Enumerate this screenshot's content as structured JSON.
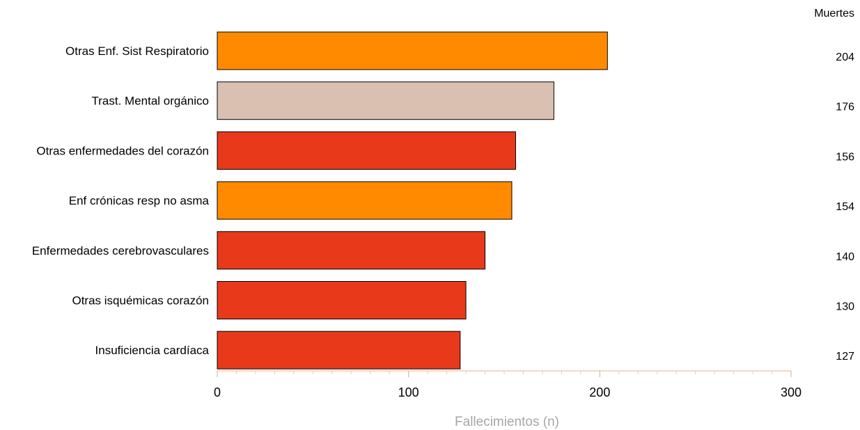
{
  "chart_data": {
    "type": "bar",
    "orientation": "horizontal",
    "categories": [
      "Otras Enf. Sist Respiratorio",
      "Trast. Mental orgánico",
      "Otras enfermedades del corazón",
      "Enf crónicas resp no asma",
      "Enfermedades cerebrovasculares",
      "Otras isquémicas corazón",
      "Insuficiencia cardíaca"
    ],
    "values": [
      204,
      176,
      156,
      154,
      140,
      130,
      127
    ],
    "value_labels": [
      "204",
      "176",
      "156",
      "154",
      "140",
      "130",
      "127"
    ],
    "bar_colors": [
      "#ff8a00",
      "#d9c0b1",
      "#e8391b",
      "#ff8a00",
      "#e8391b",
      "#e8391b",
      "#e8391b"
    ],
    "value_column_header": "Muertes",
    "xlabel": "Fallecimientos (n)",
    "xlim": [
      0,
      300
    ],
    "xticks": [
      "0",
      "100",
      "200",
      "300"
    ],
    "axis_color": "#f3c9b3",
    "xlabel_color": "#a6a6a6"
  }
}
